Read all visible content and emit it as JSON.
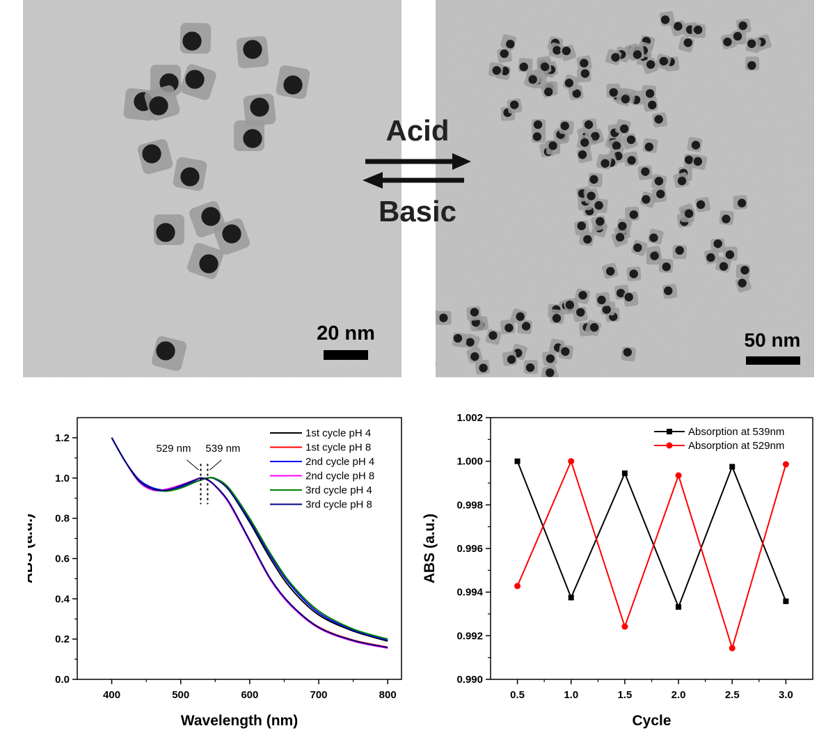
{
  "tem": {
    "left_scale": "20 nm",
    "right_scale": "50 nm"
  },
  "reaction": {
    "forward": "Acid",
    "backward": "Basic"
  },
  "chart_data": [
    {
      "type": "line",
      "xlabel": "Wavelength (nm)",
      "ylabel": "ABS (a.u.)",
      "xlim": [
        350,
        820
      ],
      "ylim": [
        0.0,
        1.3
      ],
      "xticks": [
        400,
        500,
        600,
        700,
        800
      ],
      "yticks": [
        0.0,
        0.2,
        0.4,
        0.6,
        0.8,
        1.0,
        1.2
      ],
      "xtick_labels": [
        "400",
        "500",
        "600",
        "700",
        "800"
      ],
      "ytick_labels": [
        "0.0",
        "0.2",
        "0.4",
        "0.6",
        "0.8",
        "1.0",
        "1.2"
      ],
      "legend_position": "top-right",
      "annotations": [
        {
          "text": "529 nm",
          "x": 529
        },
        {
          "text": "539 nm",
          "x": 539
        }
      ],
      "x": [
        400,
        420,
        440,
        460,
        480,
        500,
        520,
        529,
        539,
        550,
        570,
        600,
        630,
        660,
        700,
        750,
        800
      ],
      "series": [
        {
          "name": "1st cycle pH 4",
          "color": "#000000",
          "values": [
            1.2,
            1.08,
            0.99,
            0.95,
            0.94,
            0.955,
            0.98,
            0.99,
            1.0,
            0.995,
            0.94,
            0.78,
            0.6,
            0.45,
            0.32,
            0.24,
            0.19
          ]
        },
        {
          "name": "1st cycle pH 8",
          "color": "#ff0000",
          "values": [
            1.2,
            1.08,
            0.98,
            0.94,
            0.945,
            0.965,
            0.99,
            1.0,
            0.99,
            0.96,
            0.88,
            0.69,
            0.5,
            0.37,
            0.26,
            0.195,
            0.16
          ]
        },
        {
          "name": "2nd cycle pH 4",
          "color": "#0000ff",
          "values": [
            1.2,
            1.08,
            0.99,
            0.95,
            0.94,
            0.955,
            0.98,
            0.99,
            1.0,
            0.996,
            0.945,
            0.79,
            0.615,
            0.465,
            0.33,
            0.245,
            0.195
          ]
        },
        {
          "name": "2nd cycle pH 8",
          "color": "#ff00ff",
          "values": [
            1.2,
            1.08,
            0.98,
            0.94,
            0.945,
            0.965,
            0.99,
            1.0,
            0.99,
            0.96,
            0.875,
            0.685,
            0.495,
            0.365,
            0.255,
            0.19,
            0.155
          ]
        },
        {
          "name": "3rd cycle pH 4",
          "color": "#008000",
          "values": [
            1.2,
            1.08,
            0.985,
            0.945,
            0.935,
            0.95,
            0.978,
            0.99,
            1.0,
            0.998,
            0.95,
            0.8,
            0.625,
            0.475,
            0.34,
            0.25,
            0.2
          ]
        },
        {
          "name": "3rd cycle pH 8",
          "color": "#000080",
          "values": [
            1.2,
            1.08,
            0.985,
            0.945,
            0.94,
            0.962,
            0.988,
            1.0,
            0.992,
            0.962,
            0.88,
            0.69,
            0.5,
            0.37,
            0.258,
            0.193,
            0.158
          ]
        }
      ]
    },
    {
      "type": "line",
      "xlabel": "Cycle",
      "ylabel": "ABS (a.u.)",
      "xlim": [
        0.25,
        3.25
      ],
      "ylim": [
        0.99,
        1.002
      ],
      "xticks": [
        0.5,
        1.0,
        1.5,
        2.0,
        2.5,
        3.0
      ],
      "yticks": [
        0.99,
        0.992,
        0.994,
        0.996,
        0.998,
        1.0,
        1.002
      ],
      "xtick_labels": [
        "0.5",
        "1.0",
        "1.5",
        "2.0",
        "2.5",
        "3.0"
      ],
      "ytick_labels": [
        "0.990",
        "0.992",
        "0.994",
        "0.996",
        "0.998",
        "1.000",
        "1.002"
      ],
      "legend_position": "top-right",
      "x": [
        0.5,
        1.0,
        1.5,
        2.0,
        2.5,
        3.0
      ],
      "series": [
        {
          "name": "Absorption at 539nm",
          "color": "#000000",
          "marker": "square",
          "values": [
            1.0,
            0.99375,
            0.99945,
            0.99332,
            0.99975,
            0.99358
          ]
        },
        {
          "name": "Absorption at 529nm",
          "color": "#ff0000",
          "marker": "circle",
          "values": [
            0.99428,
            1.0,
            0.99242,
            0.99935,
            0.99143,
            0.99986
          ]
        }
      ]
    }
  ]
}
